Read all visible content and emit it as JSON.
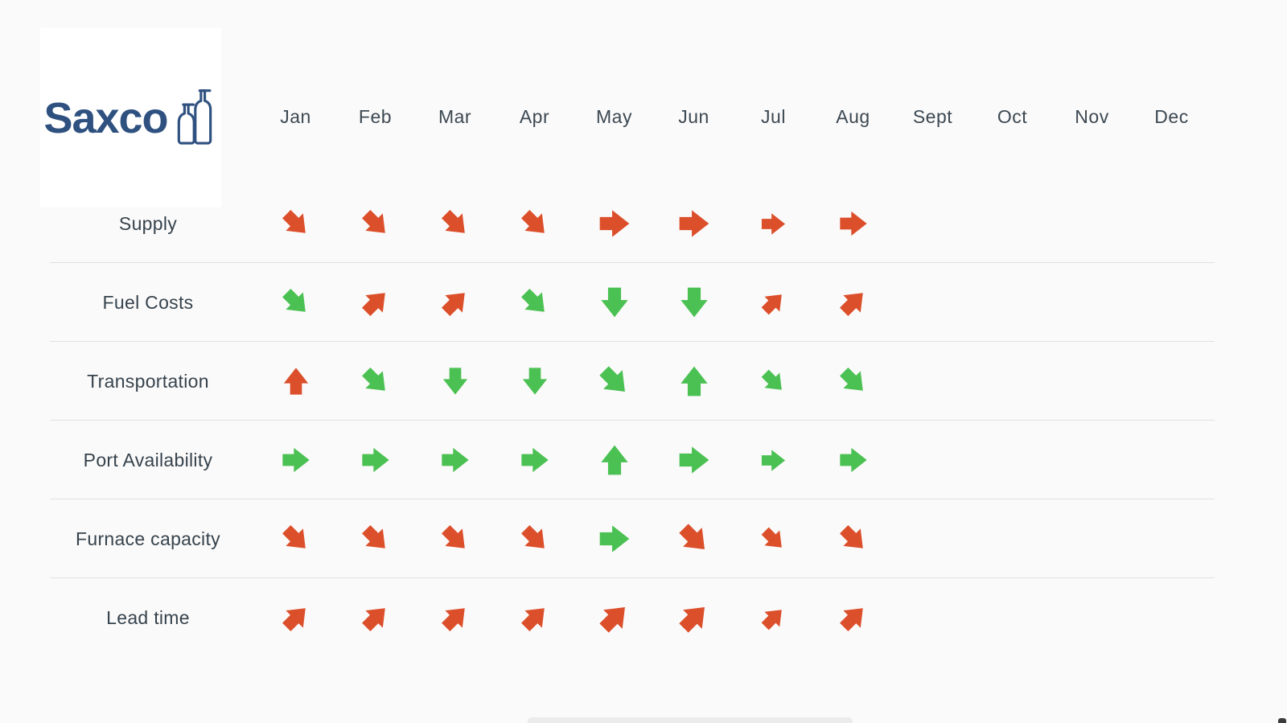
{
  "app": {
    "background": "#fbfafa"
  },
  "logo": {
    "text": "Saxco",
    "color": "#2f5180",
    "icon": "two-bottles-icon"
  },
  "colors": {
    "red": "#dc4f2b",
    "green": "#4bc153",
    "text": "#3c4852",
    "divider": "#e1e1e1",
    "logo_blue": "#2f5180"
  },
  "icon_legend": {
    "diag-down": "arrow-diagonal-down-icon",
    "diag-up": "arrow-diagonal-up-icon",
    "up": "arrow-up-icon",
    "down": "arrow-down-icon",
    "right": "arrow-right-icon"
  },
  "chart_data": {
    "type": "table",
    "columns": [
      "Jan",
      "Feb",
      "Mar",
      "Apr",
      "May",
      "Jun",
      "Jul",
      "Aug",
      "Sept",
      "Oct",
      "Nov",
      "Dec"
    ],
    "rows": [
      {
        "label": "Supply",
        "values": [
          "diag-down:red",
          "diag-down:red",
          "diag-down:red",
          "diag-down:red",
          "right:red",
          "right:red",
          "right:red",
          "right:red",
          null,
          null,
          null,
          null
        ]
      },
      {
        "label": "Fuel Costs",
        "values": [
          "diag-down:green",
          "diag-up:red",
          "diag-up:red",
          "diag-down:green",
          "down:green",
          "down:green",
          "diag-up:red",
          "diag-up:red",
          null,
          null,
          null,
          null
        ]
      },
      {
        "label": "Transportation",
        "values": [
          "up:red",
          "diag-down:green",
          "down:green",
          "down:green",
          "diag-down:green",
          "up:green",
          "diag-down:green",
          "diag-down:green",
          null,
          null,
          null,
          null
        ]
      },
      {
        "label": "Port Availability",
        "values": [
          "right:green",
          "right:green",
          "right:green",
          "right:green",
          "up:green",
          "right:green",
          "right:green",
          "right:green",
          null,
          null,
          null,
          null
        ]
      },
      {
        "label": "Furnace capacity",
        "values": [
          "diag-down:red",
          "diag-down:red",
          "diag-down:red",
          "diag-down:red",
          "right:green",
          "diag-down:red",
          "diag-down:red",
          "diag-down:red",
          null,
          null,
          null,
          null
        ]
      },
      {
        "label": "Lead time",
        "values": [
          "diag-up:red",
          "diag-up:red",
          "diag-up:red",
          "diag-up:red",
          "diag-up:red",
          "diag-up:red",
          "diag-up:red",
          "diag-up:red",
          null,
          null,
          null,
          null
        ]
      }
    ],
    "layout_hints": {
      "grid": "horizontal row dividers only",
      "filled_months": 8,
      "empty_months": [
        "Sept",
        "Oct",
        "Nov",
        "Dec"
      ]
    }
  }
}
